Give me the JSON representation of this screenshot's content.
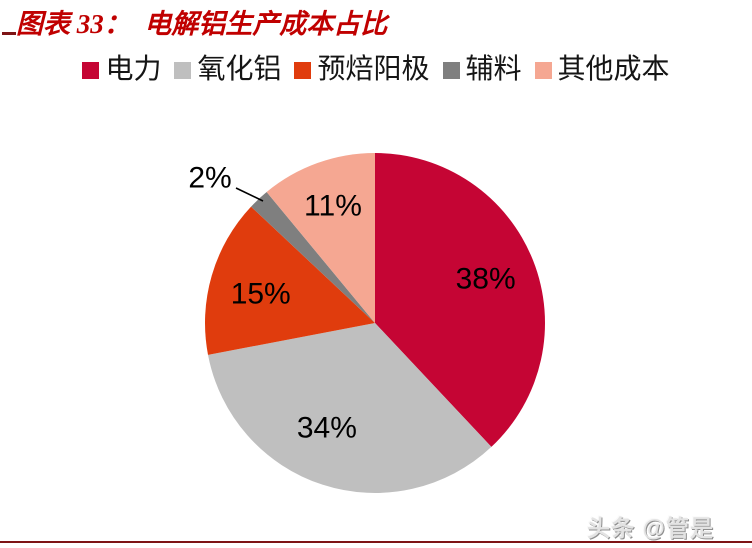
{
  "page": {
    "title": "图表 33：  电解铝生产成本占比",
    "title_color": "#C00000",
    "watermark": "头条 @管是",
    "footer_line_color": "#7E1416"
  },
  "chart_data": {
    "type": "pie",
    "title": "电解铝生产成本占比",
    "data_labels": "percent",
    "legend_position": "top",
    "start_angle_deg": 0,
    "direction": "clockwise",
    "slices": [
      {
        "label": "电力",
        "value": 38,
        "color": "#C50534"
      },
      {
        "label": "氧化铝",
        "value": 34,
        "color": "#BFBFBF"
      },
      {
        "label": "预焙阳极",
        "value": 15,
        "color": "#E03C0D"
      },
      {
        "label": "辅料",
        "value": 2,
        "color": "#7F7F7F"
      },
      {
        "label": "其他成本",
        "value": 11,
        "color": "#F5A792"
      }
    ]
  }
}
